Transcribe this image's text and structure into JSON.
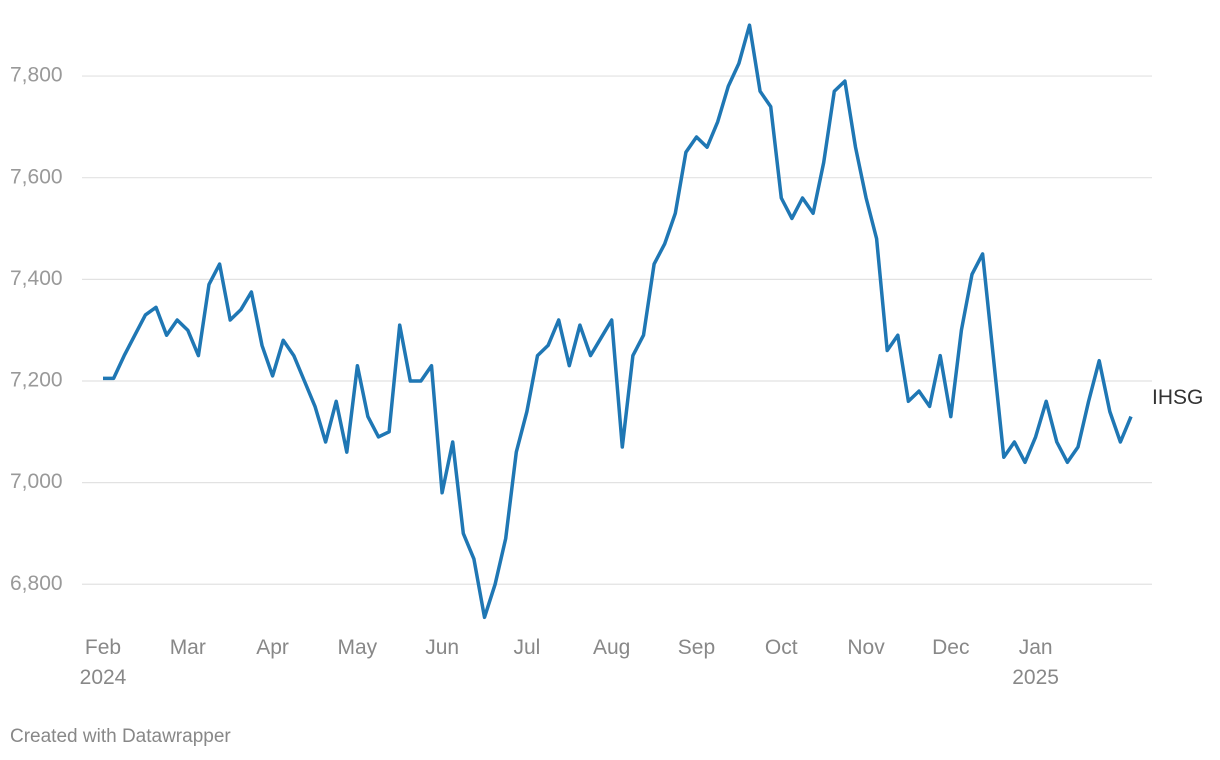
{
  "chart_data": {
    "type": "line",
    "categories": [
      "Feb 2024",
      null,
      null,
      null,
      null,
      null,
      null,
      null,
      "Mar",
      null,
      null,
      null,
      null,
      null,
      null,
      null,
      "Apr",
      null,
      null,
      null,
      null,
      null,
      null,
      null,
      "May",
      null,
      null,
      null,
      null,
      null,
      null,
      null,
      "Jun",
      null,
      null,
      null,
      null,
      null,
      null,
      null,
      "Jul",
      null,
      null,
      null,
      null,
      null,
      null,
      null,
      "Aug",
      null,
      null,
      null,
      null,
      null,
      null,
      null,
      "Sep",
      null,
      null,
      null,
      null,
      null,
      null,
      null,
      "Oct",
      null,
      null,
      null,
      null,
      null,
      null,
      null,
      "Nov",
      null,
      null,
      null,
      null,
      null,
      null,
      null,
      "Dec",
      null,
      null,
      null,
      null,
      null,
      null,
      null,
      "Jan 2025",
      null,
      null,
      null,
      null,
      null,
      null,
      null,
      null,
      null
    ],
    "series": [
      {
        "name": "IHSG",
        "color": "#1f77b4",
        "values": [
          7205,
          7205,
          7250,
          7290,
          7330,
          7345,
          7290,
          7320,
          7300,
          7250,
          7390,
          7430,
          7320,
          7340,
          7375,
          7270,
          7210,
          7280,
          7250,
          7200,
          7150,
          7080,
          7160,
          7060,
          7230,
          7130,
          7090,
          7100,
          7310,
          7200,
          7200,
          7230,
          6980,
          7080,
          6900,
          6850,
          6735,
          6800,
          6890,
          7060,
          7140,
          7250,
          7270,
          7320,
          7230,
          7310,
          7250,
          7285,
          7320,
          7070,
          7250,
          7290,
          7430,
          7470,
          7530,
          7650,
          7680,
          7660,
          7710,
          7780,
          7825,
          7900,
          7770,
          7740,
          7560,
          7520,
          7560,
          7530,
          7630,
          7770,
          7790,
          7660,
          7560,
          7480,
          7260,
          7290,
          7160,
          7180,
          7150,
          7250,
          7130,
          7300,
          7410,
          7450,
          7250,
          7050,
          7080,
          7040,
          7090,
          7160,
          7080,
          7040,
          7070,
          7160,
          7240,
          7140,
          7080,
          7130
        ]
      }
    ],
    "ylim": [
      6710,
      7930
    ],
    "yticks": [
      {
        "value": 6800,
        "label": "6,800"
      },
      {
        "value": 7000,
        "label": "7,000"
      },
      {
        "value": 7200,
        "label": "7,200"
      },
      {
        "value": 7400,
        "label": "7,400"
      },
      {
        "value": 7600,
        "label": "7,600"
      },
      {
        "value": 7800,
        "label": "7,800"
      }
    ],
    "grid": true,
    "footer": "Created with Datawrapper"
  }
}
